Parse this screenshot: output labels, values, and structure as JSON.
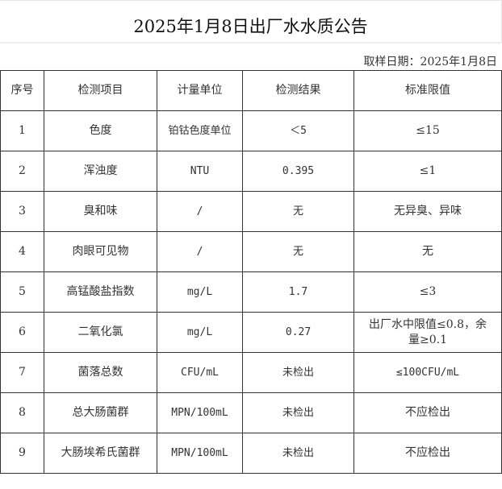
{
  "title": "2025年1月8日出厂水水质公告",
  "sample_date": "取样日期：2025年1月8日",
  "headers": [
    "序号",
    "检测项目",
    "计量单位",
    "检测结果",
    "标准限值"
  ],
  "rows": [
    [
      "1",
      "色度",
      "铂钴色度单位",
      "＜5",
      "≤15"
    ],
    [
      "2",
      "浑浊度",
      "NTU",
      "0.395",
      "≤1"
    ],
    [
      "3",
      "臭和味",
      "/",
      "无",
      "无异臭、异味"
    ],
    [
      "4",
      "肉眼可见物",
      "/",
      "无",
      "无"
    ],
    [
      "5",
      "高锰酸盐指数",
      "mg/L",
      "1.7",
      "≤3"
    ],
    [
      "6",
      "二氧化氯",
      "mg/L",
      "0.27",
      "出厂水中限值≤0.8，余量≥0.1"
    ],
    [
      "7",
      "菌落总数",
      "CFU/mL",
      "未检出",
      "≤100CFU/mL"
    ],
    [
      "8",
      "总大肠菌群",
      "MPN/100mL",
      "未检出",
      "不应检出"
    ],
    [
      "9",
      "大肠埃希氏菌群",
      "MPN/100mL",
      "未检出",
      "不应检出"
    ]
  ]
}
